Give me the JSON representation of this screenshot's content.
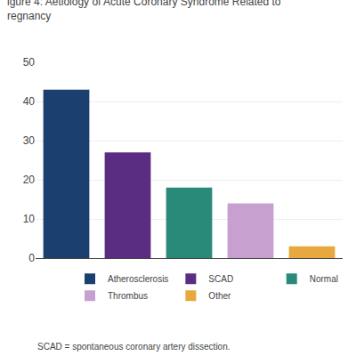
{
  "chart_data": {
    "type": "bar",
    "title": "igure 4: Aetiology of Acute Coronary Syndrome Related to\nregnancy",
    "categories": [
      "Atherosclerosis",
      "SCAD",
      "Normal",
      "Thrombus",
      "Other"
    ],
    "values": [
      43,
      27,
      18,
      14,
      3
    ],
    "colors": [
      "#1b3f6e",
      "#5a2d82",
      "#2a8a7a",
      "#c8a0d0",
      "#e8a840"
    ],
    "ylim": [
      0,
      50
    ],
    "yticks": [
      0,
      10,
      20,
      30,
      40,
      50
    ],
    "grid": true,
    "legend": "bottom",
    "tick_labels": "y",
    "annotations": [
      "SCAD = spontaneous coronary artery dissection."
    ]
  }
}
